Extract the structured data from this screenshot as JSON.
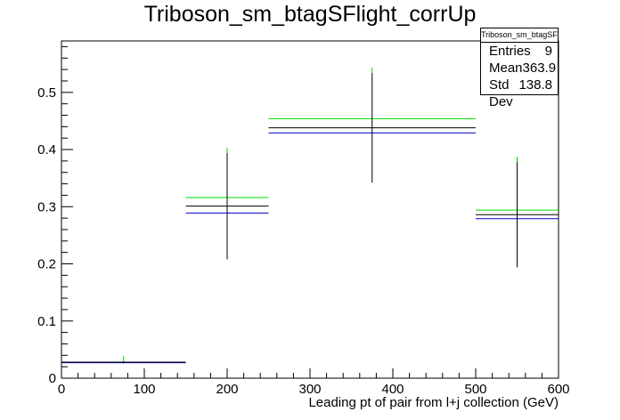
{
  "chart_data": {
    "type": "histogram",
    "title": "Triboson_sm_btagSFlight_corrUp",
    "xlabel": "Leading pt of pair from l+j collection (GeV)",
    "ylabel": "",
    "xlim": [
      0,
      600
    ],
    "ylim": [
      0,
      0.59
    ],
    "x_ticks": [
      0,
      100,
      200,
      300,
      400,
      500,
      600
    ],
    "y_ticks": [
      0,
      0.1,
      0.2,
      0.3,
      0.4,
      0.5
    ],
    "grid": false,
    "bins": [
      [
        0,
        150
      ],
      [
        150,
        250
      ],
      [
        250,
        500
      ],
      [
        500,
        600
      ]
    ],
    "series": [
      {
        "color": "#000000",
        "values": [
          0.028,
          0.301,
          0.438,
          0.286
        ],
        "errors": [
          0.002,
          0.093,
          0.096,
          0.092
        ]
      },
      {
        "color": "#00dd00",
        "values": [
          0.028,
          0.316,
          0.454,
          0.294
        ]
      },
      {
        "color": "#0000cc",
        "values": [
          0.027,
          0.289,
          0.429,
          0.279
        ]
      }
    ],
    "stats": {
      "name": "Triboson_sm_btagSFlight_corrUp",
      "entries_label": "Entries",
      "entries": "9",
      "mean_label": "Mean",
      "mean": "363.9",
      "stddev_label": "Std Dev",
      "stddev": "138.8"
    }
  }
}
